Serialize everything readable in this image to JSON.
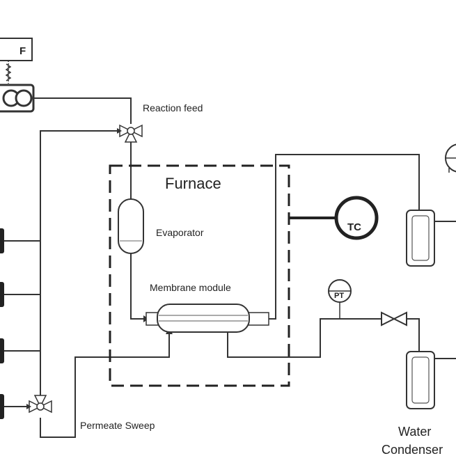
{
  "labels": {
    "reaction_feed": "Reaction feed",
    "furnace": "Furnace",
    "evaporator": "Evaporator",
    "membrane_module": "Membrane module",
    "permeate_sweep": "Permeate Sweep",
    "tc": "TC",
    "pt": "PT",
    "f": "F",
    "water": "Water",
    "condenser": "Condenser"
  }
}
